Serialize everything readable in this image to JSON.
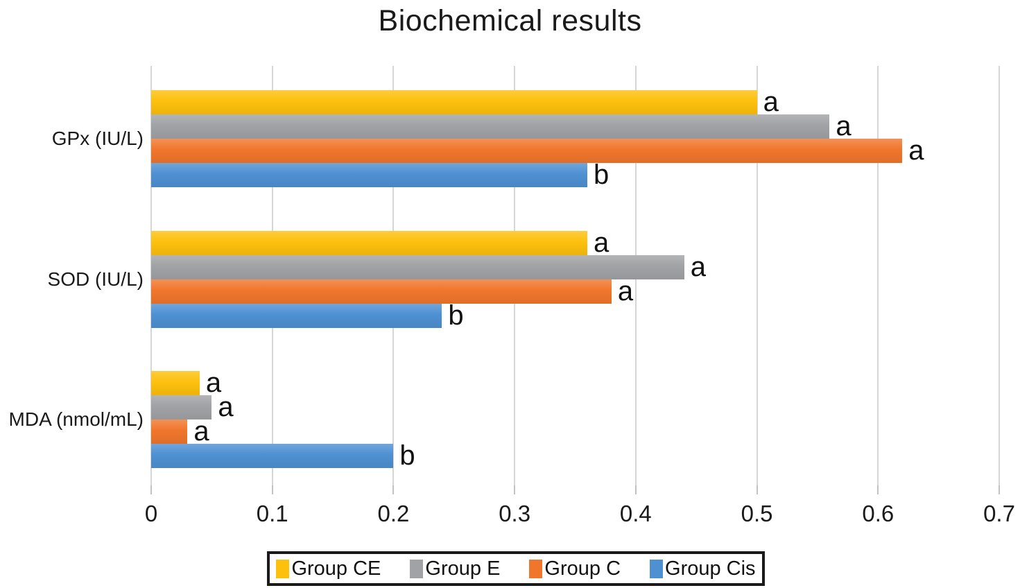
{
  "title": "Biochemical results",
  "chart_data": {
    "type": "bar",
    "orientation": "horizontal",
    "title": "Biochemical results",
    "categories": [
      "GPx (IU/L)",
      "SOD (IU/L)",
      "MDA (nmol/mL)"
    ],
    "series": [
      {
        "name": "Group CE",
        "color": "#FDC00D",
        "values": [
          0.5,
          0.36,
          0.04
        ],
        "annotations": [
          "a",
          "a",
          "a"
        ]
      },
      {
        "name": "Group E",
        "color": "#A1A2A5",
        "values": [
          0.56,
          0.44,
          0.05
        ],
        "annotations": [
          "a",
          "a",
          "a"
        ]
      },
      {
        "name": "Group C",
        "color": "#F0762C",
        "values": [
          0.62,
          0.38,
          0.03
        ],
        "annotations": [
          "a",
          "a",
          "a"
        ]
      },
      {
        "name": "Group Cis",
        "color": "#4E90D2",
        "values": [
          0.36,
          0.24,
          0.2
        ],
        "annotations": [
          "b",
          "b",
          "b"
        ]
      }
    ],
    "xlim": [
      0,
      0.7
    ],
    "xticks": [
      "0",
      "0.1",
      "0.2",
      "0.3",
      "0.4",
      "0.5",
      "0.6",
      "0.7"
    ],
    "grid": true,
    "gridline_color": "#d6d6d6",
    "legend_position": "bottom"
  },
  "legend": {
    "items": [
      {
        "label": "Group CE",
        "color": "#FDC00D"
      },
      {
        "label": "Group E",
        "color": "#A1A2A5"
      },
      {
        "label": "Group C",
        "color": "#F0762C"
      },
      {
        "label": "Group Cis",
        "color": "#4E90D2"
      }
    ]
  }
}
